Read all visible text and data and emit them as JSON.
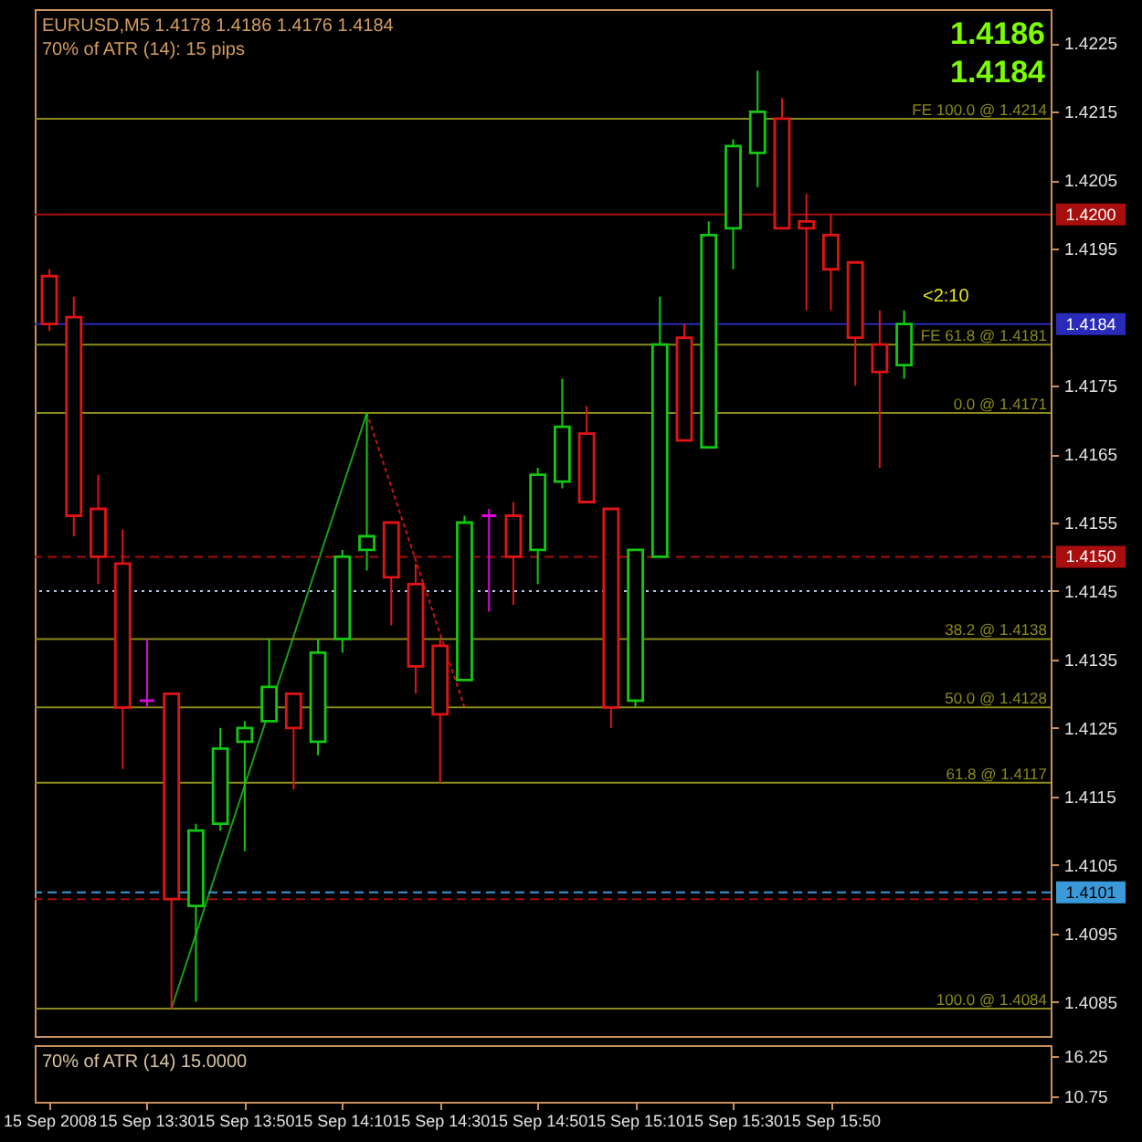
{
  "chart_data": [
    {
      "type": "candlestick",
      "title": "EURUSD,M5 1.4178 1.4186 1.4176 1.4184",
      "subtitle": "70% of ATR (14): 15 pips",
      "x": [
        "2008-09-15T13:10",
        "2008-09-15T13:15",
        "2008-09-15T13:20",
        "2008-09-15T13:25",
        "2008-09-15T13:30",
        "2008-09-15T13:35",
        "2008-09-15T13:40",
        "2008-09-15T13:45",
        "2008-09-15T13:50",
        "2008-09-15T13:55",
        "2008-09-15T14:00",
        "2008-09-15T14:05",
        "2008-09-15T14:10",
        "2008-09-15T14:15",
        "2008-09-15T14:20",
        "2008-09-15T14:25",
        "2008-09-15T14:30",
        "2008-09-15T14:35",
        "2008-09-15T14:40",
        "2008-09-15T14:45",
        "2008-09-15T14:50",
        "2008-09-15T14:55",
        "2008-09-15T15:00",
        "2008-09-15T15:05",
        "2008-09-15T15:10",
        "2008-09-15T15:15",
        "2008-09-15T15:20",
        "2008-09-15T15:25",
        "2008-09-15T15:30",
        "2008-09-15T15:35",
        "2008-09-15T15:40",
        "2008-09-15T15:45",
        "2008-09-15T15:50",
        "2008-09-15T15:55",
        "2008-09-15T16:00",
        "2008-09-15T16:05"
      ],
      "ohlc": [
        [
          1.4191,
          1.4192,
          1.4183,
          1.4184
        ],
        [
          1.4185,
          1.4188,
          1.4153,
          1.4156
        ],
        [
          1.4157,
          1.4162,
          1.4146,
          1.415
        ],
        [
          1.4149,
          1.4154,
          1.4119,
          1.4128
        ],
        [
          1.4129,
          1.4138,
          1.4128,
          1.4129
        ],
        [
          1.413,
          1.413,
          1.4084,
          1.41
        ],
        [
          1.4099,
          1.4111,
          1.4085,
          1.411
        ],
        [
          1.4111,
          1.4125,
          1.411,
          1.4122
        ],
        [
          1.4123,
          1.4126,
          1.4107,
          1.4125
        ],
        [
          1.4126,
          1.4138,
          1.4126,
          1.4131
        ],
        [
          1.413,
          1.413,
          1.4116,
          1.4125
        ],
        [
          1.4123,
          1.4138,
          1.4121,
          1.4136
        ],
        [
          1.4138,
          1.4151,
          1.4136,
          1.415
        ],
        [
          1.4151,
          1.4171,
          1.4148,
          1.4153
        ],
        [
          1.4155,
          1.4155,
          1.414,
          1.4147
        ],
        [
          1.4146,
          1.4149,
          1.413,
          1.4134
        ],
        [
          1.4137,
          1.4138,
          1.4117,
          1.4127
        ],
        [
          1.4132,
          1.4156,
          1.4132,
          1.4155
        ],
        [
          1.4156,
          1.4157,
          1.4142,
          1.4156
        ],
        [
          1.4156,
          1.4158,
          1.4143,
          1.415
        ],
        [
          1.4151,
          1.4163,
          1.4146,
          1.4162
        ],
        [
          1.4161,
          1.4176,
          1.416,
          1.4169
        ],
        [
          1.4168,
          1.4172,
          1.4158,
          1.4158
        ],
        [
          1.4157,
          1.4157,
          1.4125,
          1.4128
        ],
        [
          1.4129,
          1.4151,
          1.4128,
          1.4151
        ],
        [
          1.415,
          1.4188,
          1.415,
          1.4181
        ],
        [
          1.4182,
          1.4184,
          1.4167,
          1.4167
        ],
        [
          1.4166,
          1.4199,
          1.4166,
          1.4197
        ],
        [
          1.4198,
          1.4211,
          1.4192,
          1.421
        ],
        [
          1.4209,
          1.4221,
          1.4204,
          1.4215
        ],
        [
          1.4214,
          1.4217,
          1.4198,
          1.4198
        ],
        [
          1.4199,
          1.4203,
          1.4186,
          1.4198
        ],
        [
          1.4197,
          1.42,
          1.4186,
          1.4192
        ],
        [
          1.4193,
          1.4193,
          1.4175,
          1.4182
        ],
        [
          1.4181,
          1.4186,
          1.4163,
          1.4177
        ],
        [
          1.4178,
          1.4186,
          1.4176,
          1.4184
        ]
      ],
      "colors": [
        "#e01414",
        "#e01414",
        "#e01414",
        "#e01414",
        "#e000e0",
        "#e01414",
        "#12c812",
        "#12c812",
        "#12c812",
        "#12c812",
        "#e01414",
        "#12c812",
        "#12c812",
        "#12c812",
        "#e01414",
        "#e01414",
        "#e01414",
        "#12c812",
        "#e000e0",
        "#e01414",
        "#12c812",
        "#12c812",
        "#e01414",
        "#e01414",
        "#12c812",
        "#12c812",
        "#e01414",
        "#12c812",
        "#12c812",
        "#12c812",
        "#e01414",
        "#e01414",
        "#e01414",
        "#e01414",
        "#e01414",
        "#12c812"
      ],
      "series": [
        {
          "type": "line",
          "x": [
            "2008-09-15T13:35",
            "2008-09-15T14:15"
          ],
          "values": [
            1.4084,
            1.4171
          ],
          "color": "#1a9c1a"
        },
        {
          "type": "line",
          "x": [
            "2008-09-15T14:15",
            "2008-09-15T14:35"
          ],
          "values": [
            1.4171,
            1.4128
          ],
          "color": "#c81414",
          "line_style": "dotted"
        }
      ],
      "xlim": [
        "2008-09-15T13:07",
        "2008-09-15T16:35"
      ],
      "ylim": [
        1.408,
        1.423
      ],
      "yticks": [
        1.4225,
        1.4215,
        1.4205,
        1.4195,
        1.4175,
        1.4165,
        1.4155,
        1.4145,
        1.4135,
        1.4125,
        1.4115,
        1.4105,
        1.4095,
        1.4085
      ],
      "tick_labels": "y",
      "ref_lines": [
        {
          "axis": "y",
          "value": 1.4214,
          "color": "#8b8a1c"
        },
        {
          "axis": "y",
          "value": 1.4181,
          "color": "#8b8a1c"
        },
        {
          "axis": "y",
          "value": 1.4171,
          "color": "#8b8a1c"
        },
        {
          "axis": "y",
          "value": 1.4138,
          "color": "#8b8a1c"
        },
        {
          "axis": "y",
          "value": 1.4128,
          "color": "#8b8a1c"
        },
        {
          "axis": "y",
          "value": 1.4117,
          "color": "#8b8a1c"
        },
        {
          "axis": "y",
          "value": 1.4084,
          "color": "#8b8a1c"
        },
        {
          "axis": "y",
          "value": 1.42,
          "label": "1.4200",
          "color": "#a80e0e"
        },
        {
          "axis": "y",
          "value": 1.415,
          "label": "1.4150",
          "color": "#a80e0e",
          "line_style": "dashed"
        },
        {
          "axis": "y",
          "value": 1.4184,
          "label": "1.4184",
          "color": "#2a2ab8"
        },
        {
          "axis": "y",
          "value": 1.4101,
          "label": "1.4101",
          "color": "#3a9ad9",
          "line_style": "dashed"
        },
        {
          "axis": "y",
          "value": 1.41,
          "color": "#a80e0e",
          "line_style": "dashed"
        },
        {
          "axis": "y",
          "value": 1.4145,
          "color": "#b4c4e4",
          "line_style": "dotted"
        }
      ],
      "annotations": [
        "1.4186",
        "1.4184",
        "<2:10",
        {
          "text": "FE 100.0 @ 1.4214",
          "x": "2008-09-15T16:35",
          "y": 1.4214
        },
        {
          "text": "FE 61.8 @ 1.4181",
          "x": "2008-09-15T16:35",
          "y": 1.4181
        },
        {
          "text": "0.0 @ 1.4171",
          "x": "2008-09-15T16:35",
          "y": 1.4171
        },
        {
          "text": "38.2 @ 1.4138",
          "x": "2008-09-15T16:35",
          "y": 1.4138
        },
        {
          "text": "50.0 @ 1.4128",
          "x": "2008-09-15T16:35",
          "y": 1.4128
        },
        {
          "text": "61.8 @ 1.4117",
          "x": "2008-09-15T16:35",
          "y": 1.4117
        },
        {
          "text": "100.0 @ 1.4084",
          "x": "2008-09-15T16:35",
          "y": 1.4084
        }
      ]
    },
    {
      "type": "line",
      "title": "70% of ATR (14) 15.0000",
      "xlim": [
        "2008-09-15T13:07",
        "2008-09-15T16:35"
      ],
      "xticks": [
        {
          "value": "2008-09-15T13:10",
          "label": "15 Sep 2008"
        },
        {
          "value": "2008-09-15T13:30",
          "label": "15 Sep 13:30"
        },
        {
          "value": "2008-09-15T13:50",
          "label": "15 Sep 13:50"
        },
        {
          "value": "2008-09-15T14:10",
          "label": "15 Sep 14:10"
        },
        {
          "value": "2008-09-15T14:30",
          "label": "15 Sep 14:30"
        },
        {
          "value": "2008-09-15T14:50",
          "label": "15 Sep 14:50"
        },
        {
          "value": "2008-09-15T15:10",
          "label": "15 Sep 15:10"
        },
        {
          "value": "2008-09-15T15:30",
          "label": "15 Sep 15:30"
        },
        {
          "value": "2008-09-15T15:50",
          "label": "15 Sep 15:50"
        }
      ],
      "ylim": [
        10.0,
        17.75
      ],
      "yticks": [
        16.25,
        10.75
      ]
    }
  ]
}
